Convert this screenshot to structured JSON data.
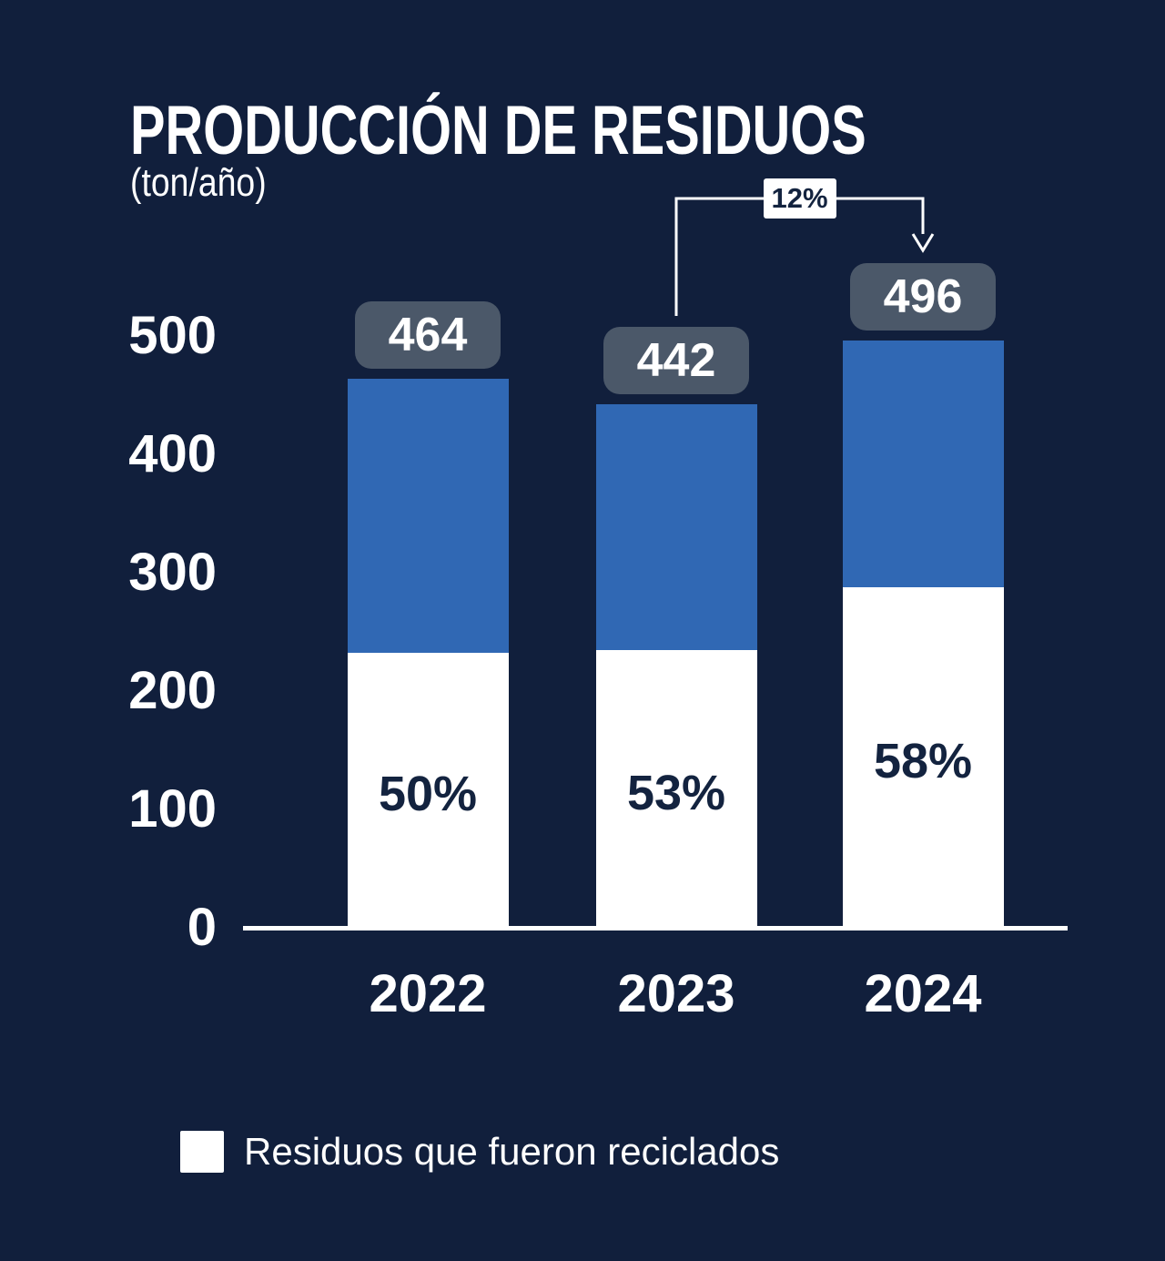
{
  "page": {
    "background_color": "#111F3C"
  },
  "chart_data": {
    "type": "bar",
    "variant": "stacked",
    "title": "PRODUCCIÓN DE RESIDUOS",
    "unit_label": "(ton/año)",
    "categories": [
      "2022",
      "2023",
      "2024"
    ],
    "totals": [
      464,
      442,
      496
    ],
    "total_labels": [
      "464",
      "442",
      "496"
    ],
    "recycled_pct": [
      50,
      53,
      58
    ],
    "pct_labels": [
      "50%",
      "53%",
      "58%"
    ],
    "series": [
      {
        "name": "Residuos que fueron reciclados",
        "color": "#ffffff",
        "values": [
          232,
          234,
          288
        ]
      },
      {
        "name": "",
        "color": "#3068B4",
        "values": [
          232,
          208,
          208
        ]
      }
    ],
    "yticks": [
      0,
      100,
      200,
      300,
      400,
      500
    ],
    "ylim": [
      0,
      500
    ],
    "grid": false,
    "legend_position": "bottom-left",
    "annotation": {
      "label": "12%",
      "from_category": "2023",
      "to_category": "2024"
    }
  },
  "legend": {
    "items": [
      {
        "swatch_color": "#ffffff",
        "label": "Residuos que fueron reciclados"
      }
    ]
  },
  "colors": {
    "background": "#111F3C",
    "bar_blue": "#3068B4",
    "bar_white": "#ffffff",
    "value_badge_bg": "#4B5869",
    "text_light": "#ffffff",
    "text_dark": "#13233F",
    "axis": "#ffffff"
  }
}
